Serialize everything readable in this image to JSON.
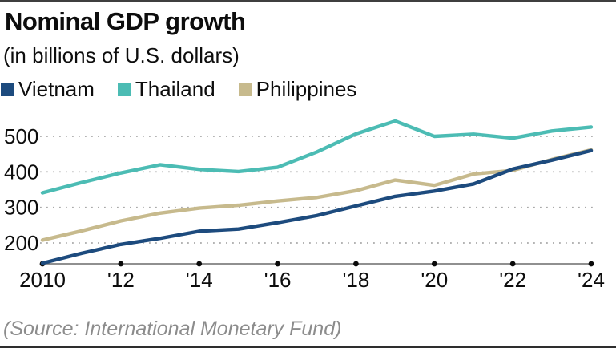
{
  "header": {
    "title": "Nominal GDP growth",
    "subtitle": "(in billions of U.S. dollars)"
  },
  "legend": {
    "items": [
      {
        "label": "Vietnam",
        "color": "#1d4b7e"
      },
      {
        "label": "Thailand",
        "color": "#4cbcb4"
      },
      {
        "label": "Philippines",
        "color": "#c7ba8d"
      }
    ]
  },
  "source": "(Source: International Monetary Fund)",
  "colors": {
    "text": "#0d0d0d",
    "grid": "#a9a9a9",
    "axis": "#6b6b6b",
    "tick_dot": "#0a0a0a",
    "source_text": "#8c8c8c",
    "border_bar": "#3f3f3f"
  },
  "chart_data": {
    "type": "line",
    "title": "Nominal GDP growth",
    "subtitle": "(in billions of U.S. dollars)",
    "xlabel": "",
    "ylabel": "",
    "x": [
      2010,
      2011,
      2012,
      2013,
      2014,
      2015,
      2016,
      2017,
      2018,
      2019,
      2020,
      2021,
      2022,
      2023,
      2024
    ],
    "series": [
      {
        "name": "Thailand",
        "color": "#4cbcb4",
        "values": [
          341,
          370,
          397,
          420,
          407,
          401,
          413,
          456,
          507,
          543,
          500,
          506,
          495,
          515,
          526
        ]
      },
      {
        "name": "Philippines",
        "color": "#c7ba8d",
        "values": [
          208,
          234,
          262,
          284,
          298,
          306,
          318,
          328,
          347,
          377,
          362,
          394,
          404,
          435,
          462
        ]
      },
      {
        "name": "Vietnam",
        "color": "#1d4b7e",
        "values": [
          143,
          171,
          196,
          213,
          233,
          239,
          257,
          277,
          304,
          331,
          346,
          366,
          408,
          433,
          460
        ]
      }
    ],
    "y_ticks": [
      200,
      300,
      400,
      500
    ],
    "x_ticks": [
      {
        "year": 2010,
        "label": "2010"
      },
      {
        "year": 2012,
        "label": "'12"
      },
      {
        "year": 2014,
        "label": "'14"
      },
      {
        "year": 2016,
        "label": "'16"
      },
      {
        "year": 2018,
        "label": "'18"
      },
      {
        "year": 2020,
        "label": "'20"
      },
      {
        "year": 2022,
        "label": "'22"
      },
      {
        "year": 2024,
        "label": "'24"
      }
    ],
    "ylim": [
      141,
      570
    ],
    "xlim": [
      2010,
      2024
    ],
    "grid": "horizontal-dotted",
    "legend_position": "top-left"
  }
}
